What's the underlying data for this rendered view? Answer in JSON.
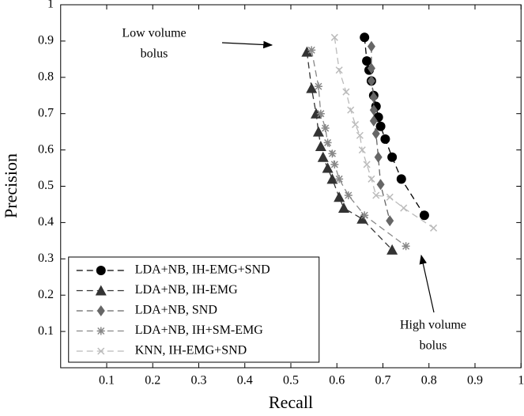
{
  "chart_data": {
    "type": "line",
    "xlabel": "Recall",
    "ylabel": "Precision",
    "xlim": [
      0,
      1
    ],
    "ylim": [
      0,
      1
    ],
    "xticks": [
      0.1,
      0.2,
      0.3,
      0.4,
      0.5,
      0.6,
      0.7,
      0.8,
      0.9,
      1
    ],
    "yticks": [
      0.1,
      0.2,
      0.3,
      0.4,
      0.5,
      0.6,
      0.7,
      0.8,
      0.9,
      1
    ],
    "legend": "lower left",
    "line_style": "dashed",
    "annotations": [
      [
        "Low volume",
        "bolus"
      ],
      [
        "High volume",
        "bolus"
      ]
    ],
    "series": [
      {
        "name": "LDA+NB, IH-EMG+SND",
        "color": "#000000",
        "marker": "circle",
        "x": [
          0.66,
          0.665,
          0.67,
          0.675,
          0.68,
          0.685,
          0.69,
          0.695,
          0.705,
          0.72,
          0.74,
          0.79
        ],
        "values": [
          0.91,
          0.845,
          0.82,
          0.79,
          0.75,
          0.72,
          0.69,
          0.665,
          0.63,
          0.58,
          0.52,
          0.42
        ]
      },
      {
        "name": "LDA+NB, IH-EMG",
        "color": "#333333",
        "marker": "triangle",
        "x": [
          0.535,
          0.545,
          0.555,
          0.56,
          0.565,
          0.57,
          0.58,
          0.59,
          0.605,
          0.615,
          0.655,
          0.72
        ],
        "values": [
          0.87,
          0.77,
          0.7,
          0.65,
          0.61,
          0.58,
          0.55,
          0.52,
          0.47,
          0.44,
          0.41,
          0.325
        ]
      },
      {
        "name": "LDA+NB, SND",
        "color": "#666666",
        "marker": "diamond",
        "x": [
          0.675,
          0.675,
          0.675,
          0.68,
          0.68,
          0.68,
          0.685,
          0.69,
          0.695,
          0.715
        ],
        "values": [
          0.885,
          0.825,
          0.79,
          0.745,
          0.71,
          0.68,
          0.645,
          0.58,
          0.505,
          0.405
        ]
      },
      {
        "name": "LDA+NB, IH+SM-EMG",
        "color": "#888888",
        "marker": "star",
        "x": [
          0.545,
          0.56,
          0.565,
          0.575,
          0.58,
          0.59,
          0.595,
          0.605,
          0.625,
          0.66,
          0.75
        ],
        "values": [
          0.875,
          0.775,
          0.7,
          0.66,
          0.62,
          0.59,
          0.56,
          0.52,
          0.475,
          0.42,
          0.335
        ]
      },
      {
        "name": "KNN, IH-EMG+SND",
        "color": "#bbbbbb",
        "marker": "x",
        "x": [
          0.595,
          0.605,
          0.62,
          0.63,
          0.64,
          0.65,
          0.655,
          0.665,
          0.675,
          0.685,
          0.715,
          0.745,
          0.81
        ],
        "values": [
          0.91,
          0.82,
          0.76,
          0.71,
          0.67,
          0.64,
          0.6,
          0.56,
          0.52,
          0.475,
          0.47,
          0.44,
          0.385
        ]
      }
    ]
  }
}
